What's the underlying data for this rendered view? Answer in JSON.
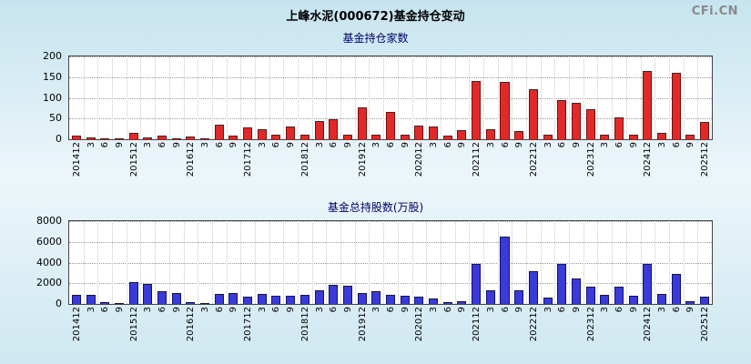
{
  "title": "上峰水泥(000672)基金持仓变动",
  "watermark": "CFi.CN",
  "chart_data": [
    {
      "type": "bar",
      "title": "基金持仓家数",
      "categories": [
        "201412",
        "3",
        "6",
        "9",
        "201512",
        "3",
        "6",
        "9",
        "201612",
        "3",
        "6",
        "9",
        "201712",
        "3",
        "6",
        "9",
        "201812",
        "3",
        "6",
        "9",
        "201912",
        "3",
        "6",
        "9",
        "202012",
        "3",
        "6",
        "9",
        "202112",
        "3",
        "6",
        "9",
        "202212",
        "3",
        "6",
        "9",
        "202312",
        "3",
        "6",
        "9",
        "202412",
        "3",
        "6",
        "9",
        "202512"
      ],
      "values": [
        8,
        5,
        3,
        2,
        15,
        4,
        8,
        2,
        6,
        3,
        35,
        8,
        28,
        25,
        10,
        30,
        12,
        45,
        48,
        10,
        78,
        12,
        65,
        10,
        33,
        30,
        8,
        22,
        140,
        25,
        138,
        20,
        122,
        10,
        95,
        88,
        72,
        12,
        52,
        12,
        165,
        15,
        160,
        12,
        42
      ],
      "xlabel": "",
      "ylabel": "",
      "ylim": [
        0,
        200
      ],
      "yticks": [
        0,
        50,
        100,
        150,
        200
      ],
      "grid": "dotted",
      "bar_color": "#e02a2a",
      "bar_border": "#7a0c0c"
    },
    {
      "type": "bar",
      "title": "基金总持股数(万股)",
      "categories": [
        "201412",
        "3",
        "6",
        "9",
        "201512",
        "3",
        "6",
        "9",
        "201612",
        "3",
        "6",
        "9",
        "201712",
        "3",
        "6",
        "9",
        "201812",
        "3",
        "6",
        "9",
        "201912",
        "3",
        "6",
        "9",
        "202012",
        "3",
        "6",
        "9",
        "202112",
        "3",
        "6",
        "9",
        "202212",
        "3",
        "6",
        "9",
        "202312",
        "3",
        "6",
        "9",
        "202412",
        "3",
        "6",
        "9",
        "202512"
      ],
      "values": [
        900,
        900,
        150,
        100,
        2100,
        1900,
        1200,
        1100,
        150,
        100,
        1000,
        1050,
        700,
        950,
        800,
        750,
        900,
        1300,
        1850,
        1800,
        1100,
        1200,
        900,
        800,
        700,
        500,
        150,
        300,
        3900,
        1300,
        6500,
        1300,
        3200,
        600,
        3900,
        2500,
        1700,
        900,
        1650,
        800,
        3900,
        1000,
        2900,
        300,
        700
      ],
      "xlabel": "",
      "ylabel": "",
      "ylim": [
        0,
        8000
      ],
      "yticks": [
        0,
        2000,
        4000,
        6000,
        8000
      ],
      "grid": "dotted",
      "bar_color": "#3a3ad8",
      "bar_border": "#101078"
    }
  ]
}
